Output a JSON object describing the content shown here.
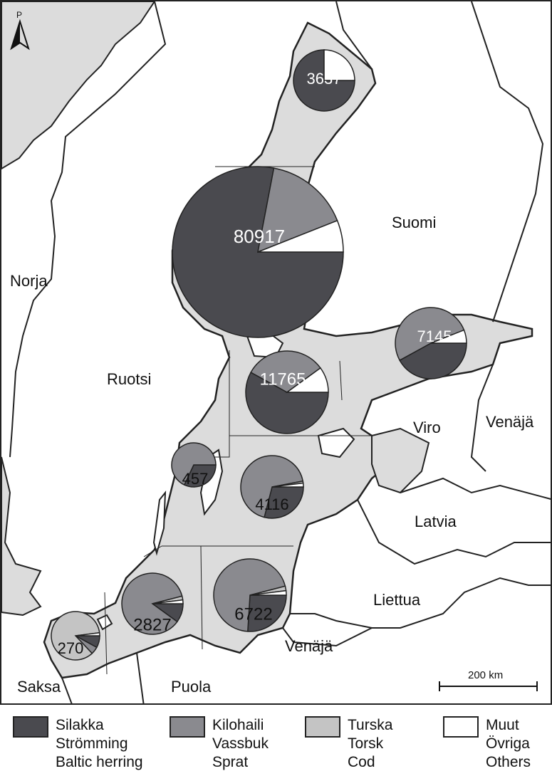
{
  "map": {
    "north_label": "P",
    "scale_label": "200 km",
    "colors": {
      "sea": "#dcdcdc",
      "land": "#ffffff",
      "coast": "#222222",
      "silakka": "#4a4a4f",
      "kilohaili": "#8a8a8f",
      "turska": "#c4c4c4",
      "muut": "#ffffff"
    },
    "country_labels": {
      "suomi": "Suomi",
      "norja": "Norja",
      "ruotsi": "Ruotsi",
      "viro": "Viro",
      "venaja_east": "Venäjä",
      "latvia": "Latvia",
      "liettua": "Liettua",
      "venaja_kal": "Venäjä",
      "saksa": "Saksa",
      "puola": "Puola"
    },
    "catch_pies": [
      {
        "total": "3637",
        "shares": {
          "silakka": 0.75,
          "kilohaili": 0.0,
          "turska": 0.0,
          "muut": 0.25
        }
      },
      {
        "total": "80917",
        "shares": {
          "silakka": 0.78,
          "kilohaili": 0.16,
          "turska": 0.0,
          "muut": 0.06
        }
      },
      {
        "total": "7145",
        "shares": {
          "silakka": 0.42,
          "kilohaili": 0.52,
          "turska": 0.0,
          "muut": 0.06
        }
      },
      {
        "total": "11765",
        "shares": {
          "silakka": 0.58,
          "kilohaili": 0.32,
          "turska": 0.0,
          "muut": 0.1
        }
      },
      {
        "total": "457",
        "shares": {
          "silakka": 0.32,
          "kilohaili": 0.68,
          "turska": 0.0,
          "muut": 0.0
        }
      },
      {
        "total": "4116",
        "shares": {
          "silakka": 0.29,
          "kilohaili": 0.68,
          "turska": 0.01,
          "muut": 0.02
        }
      },
      {
        "total": "2827",
        "shares": {
          "silakka": 0.1,
          "kilohaili": 0.86,
          "turska": 0.02,
          "muut": 0.02
        }
      },
      {
        "total": "6722",
        "shares": {
          "silakka": 0.26,
          "kilohaili": 0.7,
          "turska": 0.02,
          "muut": 0.02
        }
      },
      {
        "total": "270",
        "shares": {
          "silakka": 0.08,
          "kilohaili": 0.05,
          "turska": 0.85,
          "muut": 0.02
        }
      }
    ]
  },
  "legend": [
    {
      "key": "silakka",
      "color": "#4a4a4f",
      "lines": [
        "Silakka",
        "Strömming",
        "Baltic herring"
      ]
    },
    {
      "key": "kilohaili",
      "color": "#8a8a8f",
      "lines": [
        "Kilohaili",
        "Vassbuk",
        "Sprat"
      ]
    },
    {
      "key": "turska",
      "color": "#c4c4c4",
      "lines": [
        "Turska",
        "Torsk",
        "Cod"
      ]
    },
    {
      "key": "muut",
      "color": "#ffffff",
      "lines": [
        "Muut",
        "Övriga",
        "Others"
      ]
    }
  ]
}
